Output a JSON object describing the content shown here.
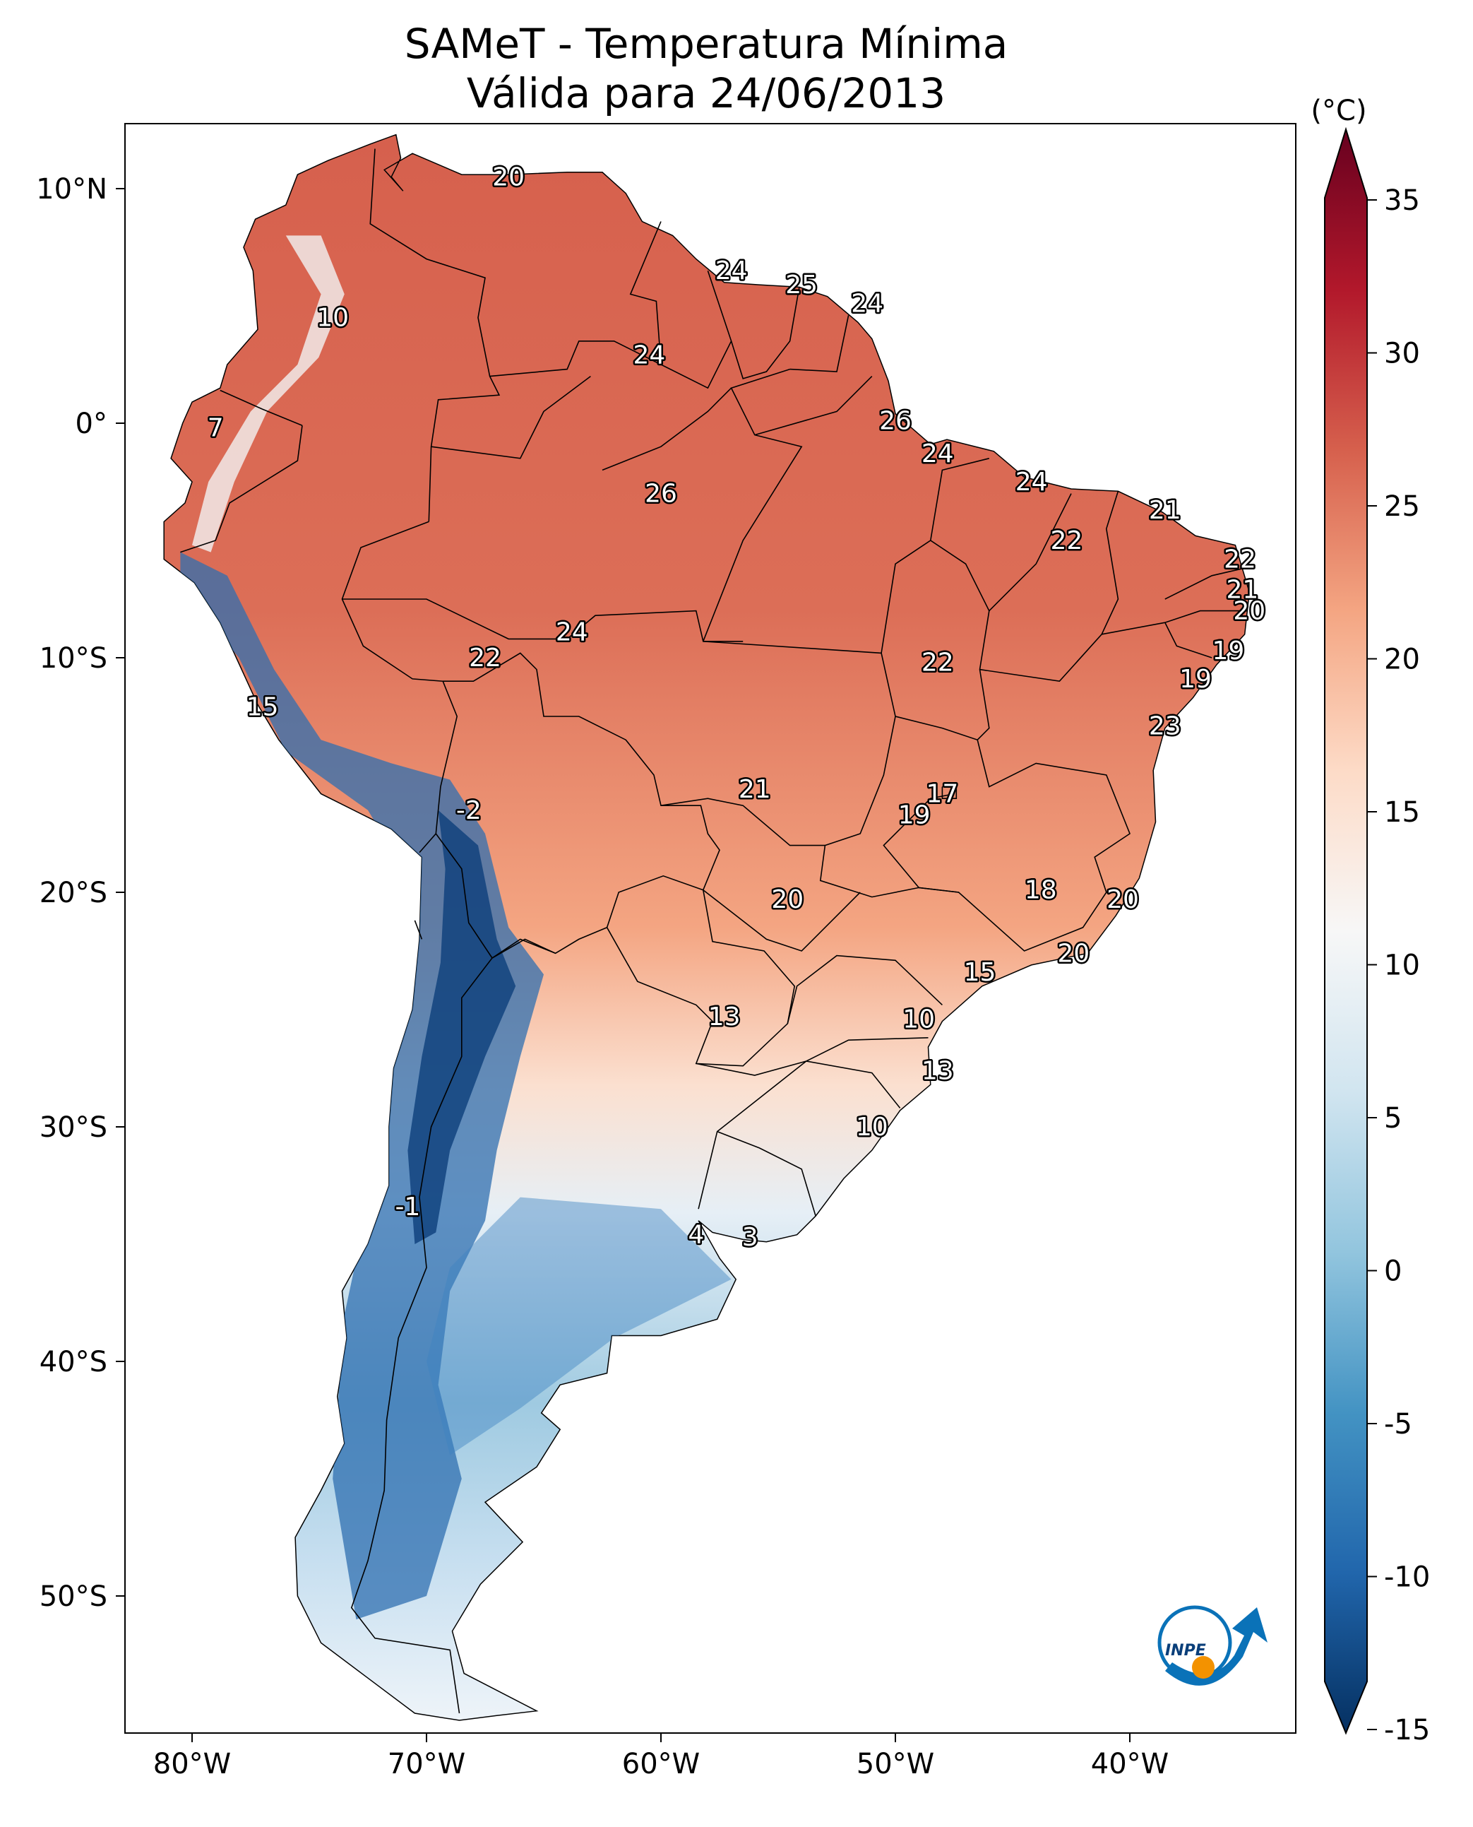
{
  "title": "SAMeT - Temperatura Mínima",
  "subtitle": "Válida para 24/06/2013",
  "units": "(°C)",
  "colorbar": {
    "min": -15,
    "max": 35,
    "ticks": [
      "35",
      "30",
      "25",
      "20",
      "15",
      "10",
      "5",
      "0",
      "-5",
      "-10",
      "-15"
    ],
    "colors": [
      "#053061",
      "#2166ac",
      "#4393c3",
      "#92c5de",
      "#d1e5f0",
      "#f7f7f7",
      "#fddbc7",
      "#f4a582",
      "#d6604d",
      "#b2182b",
      "#67001f"
    ]
  },
  "lon_labels": [
    "80°W",
    "70°W",
    "60°W",
    "50°W",
    "40°W"
  ],
  "lat_labels": [
    "10°N",
    "0°",
    "10°S",
    "20°S",
    "30°S",
    "40°S",
    "50°S"
  ],
  "labels": [
    {
      "text": "20",
      "lon": -66.5,
      "lat": 10.5
    },
    {
      "text": "10",
      "lon": -74.0,
      "lat": 4.5
    },
    {
      "text": "24",
      "lon": -57.0,
      "lat": 6.5
    },
    {
      "text": "25",
      "lon": -54.0,
      "lat": 5.9
    },
    {
      "text": "24",
      "lon": -51.2,
      "lat": 5.1
    },
    {
      "text": "24",
      "lon": -60.5,
      "lat": 2.9
    },
    {
      "text": "7",
      "lon": -79.0,
      "lat": -0.2
    },
    {
      "text": "26",
      "lon": -50.0,
      "lat": 0.1
    },
    {
      "text": "24",
      "lon": -48.2,
      "lat": -1.3
    },
    {
      "text": "26",
      "lon": -60.0,
      "lat": -3.0
    },
    {
      "text": "24",
      "lon": -44.2,
      "lat": -2.5
    },
    {
      "text": "21",
      "lon": -38.5,
      "lat": -3.7
    },
    {
      "text": "22",
      "lon": -42.7,
      "lat": -5.0
    },
    {
      "text": "22",
      "lon": -35.3,
      "lat": -5.8
    },
    {
      "text": "21",
      "lon": -35.2,
      "lat": -7.1
    },
    {
      "text": "20",
      "lon": -34.9,
      "lat": -8.0
    },
    {
      "text": "24",
      "lon": -63.8,
      "lat": -8.9
    },
    {
      "text": "22",
      "lon": -67.5,
      "lat": -10.0
    },
    {
      "text": "22",
      "lon": -48.2,
      "lat": -10.2
    },
    {
      "text": "19",
      "lon": -35.8,
      "lat": -9.7
    },
    {
      "text": "19",
      "lon": -37.2,
      "lat": -10.9
    },
    {
      "text": "23",
      "lon": -38.5,
      "lat": -12.9
    },
    {
      "text": "15",
      "lon": -77.0,
      "lat": -12.1
    },
    {
      "text": "21",
      "lon": -56.0,
      "lat": -15.6
    },
    {
      "text": "17",
      "lon": -48.0,
      "lat": -15.8
    },
    {
      "text": "19",
      "lon": -49.2,
      "lat": -16.7
    },
    {
      "text": "-2",
      "lon": -68.2,
      "lat": -16.5
    },
    {
      "text": "18",
      "lon": -43.8,
      "lat": -19.9
    },
    {
      "text": "20",
      "lon": -54.6,
      "lat": -20.3
    },
    {
      "text": "20",
      "lon": -40.3,
      "lat": -20.3
    },
    {
      "text": "20",
      "lon": -42.4,
      "lat": -22.6
    },
    {
      "text": "15",
      "lon": -46.4,
      "lat": -23.4
    },
    {
      "text": "13",
      "lon": -57.3,
      "lat": -25.3
    },
    {
      "text": "10",
      "lon": -49.0,
      "lat": -25.4
    },
    {
      "text": "13",
      "lon": -48.2,
      "lat": -27.6
    },
    {
      "text": "10",
      "lon": -51.0,
      "lat": -30.0
    },
    {
      "text": "-1",
      "lon": -70.8,
      "lat": -33.4
    },
    {
      "text": "4",
      "lon": -58.5,
      "lat": -34.6
    },
    {
      "text": "3",
      "lon": -56.2,
      "lat": -34.7
    }
  ],
  "logo": {
    "text": "INPE"
  }
}
